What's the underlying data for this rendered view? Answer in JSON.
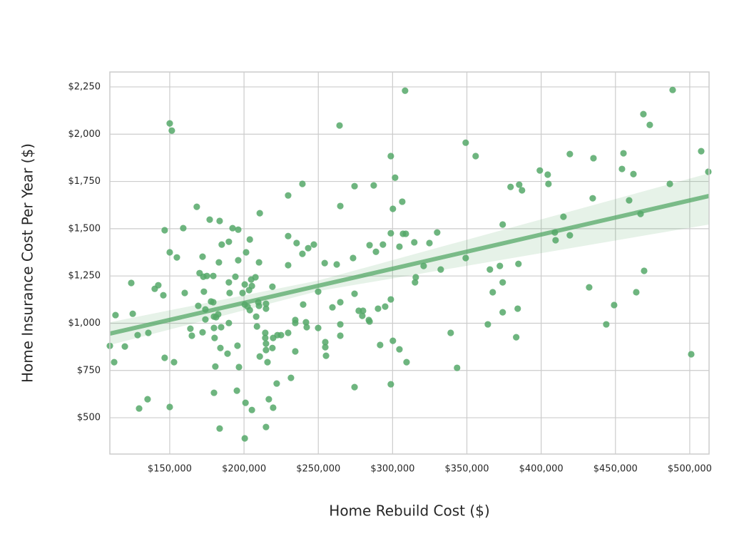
{
  "chart_data": {
    "type": "scatter",
    "x_label": "Home Rebuild Cost ($)",
    "y_label": "Home Insurance Cost Per Year ($)",
    "color": "#55a868",
    "grid": true,
    "xlim": [
      109700,
      513000
    ],
    "ylim": [
      308,
      2329
    ],
    "xticks": [
      {
        "value": 150000,
        "label": "$150,000"
      },
      {
        "value": 200000,
        "label": "$200,000"
      },
      {
        "value": 250000,
        "label": "$250,000"
      },
      {
        "value": 300000,
        "label": "$300,000"
      },
      {
        "value": 350000,
        "label": "$350,000"
      },
      {
        "value": 400000,
        "label": "$400,000"
      },
      {
        "value": 450000,
        "label": "$450,000"
      },
      {
        "value": 500000,
        "label": "$500,000"
      }
    ],
    "yticks": [
      {
        "value": 500,
        "label": "$500"
      },
      {
        "value": 750,
        "label": "$750"
      },
      {
        "value": 1000,
        "label": "$1,000"
      },
      {
        "value": 1250,
        "label": "$1,250"
      },
      {
        "value": 1500,
        "label": "$1,500"
      },
      {
        "value": 1750,
        "label": "$1,750"
      },
      {
        "value": 2000,
        "label": "$2,000"
      },
      {
        "value": 2250,
        "label": "$2,250"
      }
    ],
    "x": [
      109700,
      113500,
      112600,
      119800,
      124100,
      125100,
      128400,
      129400,
      135100,
      135600,
      139900,
      142300,
      145700,
      146600,
      146600,
      150000,
      151400,
      150000,
      150000,
      152900,
      154800,
      159100,
      160100,
      163900,
      164900,
      168200,
      169200,
      170100,
      172100,
      172100,
      172600,
      173000,
      174000,
      174000,
      175000,
      176900,
      177800,
      179300,
      179300,
      179800,
      180200,
      179800,
      180700,
      179800,
      181200,
      182600,
      183100,
      183600,
      184100,
      184600,
      183600,
      185000,
      188900,
      189800,
      189800,
      190300,
      189800,
      192300,
      194200,
      195600,
      196100,
      196100,
      195200,
      196600,
      199000,
      200500,
      200500,
      201000,
      200500,
      201400,
      202400,
      203400,
      203900,
      203900,
      205300,
      204800,
      205300,
      207700,
      208200,
      208700,
      210100,
      210600,
      209600,
      210100,
      210600,
      214300,
      214300,
      214800,
      214800,
      214800,
      214800,
      215800,
      214800,
      216700,
      219100,
      219100,
      219600,
      219600,
      222000,
      222500,
      224900,
      229700,
      229700,
      229700,
      229700,
      231600,
      234500,
      234500,
      234500,
      235400,
      239300,
      239300,
      239800,
      241700,
      242200,
      243200,
      247000,
      249900,
      249900,
      254300,
      254700,
      254700,
      255200,
      259500,
      262400,
      264300,
      264800,
      264800,
      264800,
      264800,
      273400,
      274400,
      274400,
      274400,
      277200,
      280100,
      279600,
      284000,
      284500,
      284500,
      287300,
      288800,
      290200,
      291600,
      293500,
      295000,
      298800,
      298800,
      298800,
      298800,
      300200,
      300200,
      301700,
      304600,
      304600,
      306500,
      307000,
      308900,
      308400,
      309400,
      314600,
      315100,
      315600,
      320900,
      324800,
      330000,
      332400,
      339100,
      343400,
      349200,
      349200,
      355900,
      364100,
      365500,
      367400,
      372200,
      374100,
      374100,
      374100,
      379400,
      383200,
      384200,
      384700,
      385200,
      387100,
      399100,
      404400,
      404900,
      409200,
      409700,
      415000,
      419300,
      419300,
      432300,
      434700,
      435200,
      443800,
      449100,
      454400,
      455400,
      459200,
      462100,
      464000,
      466900,
      468800,
      469300,
      473100,
      486600,
      488500,
      501000,
      507700,
      512500
    ],
    "values": [
      880,
      1043,
      794,
      877,
      1213,
      1050,
      937,
      549,
      598,
      949,
      1182,
      1201,
      1148,
      1492,
      817,
      2057,
      2019,
      1375,
      557,
      794,
      1348,
      1503,
      1160,
      971,
      934,
      1616,
      1092,
      1265,
      1352,
      952,
      1246,
      1167,
      1073,
      1020,
      1250,
      1548,
      1115,
      1250,
      1111,
      1035,
      922,
      632,
      771,
      975,
      1032,
      1047,
      1322,
      1541,
      869,
      979,
      443,
      1416,
      839,
      1216,
      1001,
      1160,
      1431,
      1503,
      1246,
      881,
      1495,
      1333,
      643,
      768,
      1160,
      1205,
      1099,
      579,
      391,
      1375,
      1088,
      1175,
      1443,
      1069,
      541,
      1231,
      1197,
      1243,
      1035,
      983,
      1322,
      1582,
      1111,
      1092,
      824,
      949,
      922,
      1103,
      1077,
      892,
      858,
      794,
      451,
      598,
      1193,
      869,
      922,
      553,
      681,
      937,
      937,
      949,
      1307,
      1461,
      1676,
      711,
      1017,
      1001,
      851,
      1424,
      1737,
      1367,
      1099,
      1005,
      979,
      1397,
      1416,
      1167,
      975,
      1318,
      900,
      873,
      828,
      1084,
      1311,
      2046,
      1620,
      994,
      934,
      1111,
      1345,
      1725,
      1156,
      662,
      1066,
      1066,
      1039,
      1017,
      1009,
      1413,
      1729,
      1378,
      1077,
      885,
      1416,
      1088,
      1126,
      1884,
      1476,
      677,
      1605,
      907,
      1770,
      1405,
      862,
      1643,
      1473,
      1473,
      2230,
      794,
      1428,
      1216,
      1243,
      1303,
      1424,
      1480,
      1284,
      949,
      764,
      1955,
      1345,
      1884,
      994,
      1284,
      1164,
      1303,
      1522,
      1216,
      1058,
      1721,
      926,
      1077,
      1314,
      1733,
      1703,
      1808,
      1786,
      1737,
      1480,
      1439,
      1563,
      1895,
      1465,
      1190,
      1661,
      1873,
      994,
      1096,
      1816,
      1899,
      1650,
      1789,
      1164,
      1578,
      2106,
      1277,
      2049,
      1737,
      2234,
      836,
      1910,
      1801
    ],
    "fit": {
      "x": [
        109700,
        250000,
        513000
      ],
      "values": [
        945,
        1198,
        1673
      ],
      "ci_lower": [
        885,
        1170,
        1522
      ],
      "ci_upper": [
        1005,
        1226,
        1793
      ]
    }
  }
}
